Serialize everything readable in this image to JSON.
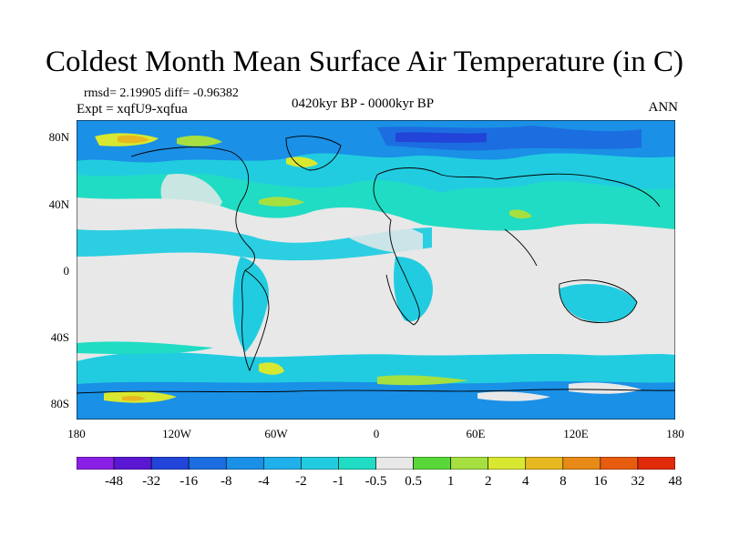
{
  "title": "Coldest Month Mean Surface Air Temperature (in C)",
  "stats": "rmsd= 2.19905 diff= -0.96382",
  "experiment": "Expt = xqfU9-xqfua",
  "period": "0420kyr BP - 0000kyr BP",
  "season": "ANN",
  "lat_labels": [
    "80N",
    "40N",
    "0",
    "40S",
    "80S"
  ],
  "lon_labels": [
    "180",
    "120W",
    "60W",
    "0",
    "60E",
    "120E",
    "180"
  ],
  "colorbar": {
    "labels": [
      "-48",
      "-32",
      "-16",
      "-8",
      "-4",
      "-2",
      "-1",
      "-0.5",
      "0.5",
      "1",
      "2",
      "4",
      "8",
      "16",
      "32",
      "48"
    ],
    "colors": [
      "#8a1fe6",
      "#5a18d4",
      "#2244d8",
      "#1c6ee0",
      "#1a90e6",
      "#20b0ec",
      "#22cce0",
      "#20dcc4",
      "#e8e8e8",
      "#58d838",
      "#a6e040",
      "#d8e830",
      "#e8b820",
      "#e88a18",
      "#e85c10",
      "#e02a0a"
    ]
  }
}
